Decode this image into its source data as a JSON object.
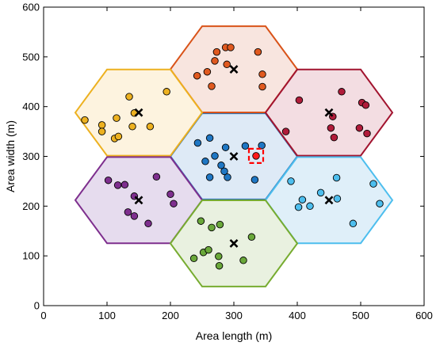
{
  "chart_data": {
    "type": "scatter",
    "title": "",
    "xlabel": "Area length (m)",
    "ylabel": "Area width (m)",
    "xlim": [
      0,
      600
    ],
    "ylim": [
      0,
      600
    ],
    "xticks": [
      "0",
      "100",
      "200",
      "300",
      "400",
      "500",
      "600"
    ],
    "yticks": [
      "0",
      "100",
      "200",
      "300",
      "400",
      "500",
      "600"
    ],
    "hex_radius": 100,
    "grid": false,
    "legend": "none",
    "cells": [
      {
        "center": [
          300,
          300
        ],
        "fill": "#deeaf6",
        "edge": "#2e75b6",
        "point_color": "#1f77c4",
        "points": [
          [
            243,
            327
          ],
          [
            262,
            337
          ],
          [
            270,
            301
          ],
          [
            287,
            318
          ],
          [
            255,
            290
          ],
          [
            280,
            282
          ],
          [
            318,
            321
          ],
          [
            344,
            322
          ],
          [
            262,
            258
          ],
          [
            285,
            270
          ],
          [
            290,
            258
          ],
          [
            333,
            253
          ]
        ]
      },
      {
        "center": [
          300,
          475
        ],
        "fill": "#f8e5df",
        "edge": "#d95319",
        "point_color": "#e0591f",
        "points": [
          [
            273,
            510
          ],
          [
            287,
            519
          ],
          [
            295,
            519
          ],
          [
            338,
            510
          ],
          [
            258,
            470
          ],
          [
            270,
            492
          ],
          [
            289,
            485
          ],
          [
            242,
            462
          ],
          [
            265,
            441
          ],
          [
            345,
            465
          ],
          [
            345,
            440
          ]
        ]
      },
      {
        "center": [
          150,
          388
        ],
        "fill": "#fdf3df",
        "edge": "#edb120",
        "point_color": "#edb120",
        "points": [
          [
            135,
            420
          ],
          [
            194,
            430
          ],
          [
            115,
            377
          ],
          [
            143,
            387
          ],
          [
            65,
            373
          ],
          [
            92,
            363
          ],
          [
            92,
            350
          ],
          [
            140,
            360
          ],
          [
            112,
            336
          ],
          [
            118,
            340
          ],
          [
            168,
            360
          ]
        ]
      },
      {
        "center": [
          450,
          388
        ],
        "fill": "#f3dde2",
        "edge": "#a2142f",
        "point_color": "#b01c3a",
        "points": [
          [
            403,
            413
          ],
          [
            470,
            430
          ],
          [
            502,
            408
          ],
          [
            508,
            403
          ],
          [
            456,
            380
          ],
          [
            498,
            357
          ],
          [
            453,
            357
          ],
          [
            510,
            346
          ],
          [
            458,
            338
          ],
          [
            382,
            350
          ]
        ]
      },
      {
        "center": [
          150,
          212
        ],
        "fill": "#e6dcee",
        "edge": "#7e2f8e",
        "point_color": "#7e2f8e",
        "points": [
          [
            102,
            252
          ],
          [
            117,
            242
          ],
          [
            128,
            243
          ],
          [
            178,
            259
          ],
          [
            200,
            224
          ],
          [
            143,
            220
          ],
          [
            205,
            205
          ],
          [
            133,
            188
          ],
          [
            143,
            180
          ],
          [
            165,
            165
          ]
        ]
      },
      {
        "center": [
          450,
          212
        ],
        "fill": "#dfeff9",
        "edge": "#4dbeee",
        "point_color": "#4dbeee",
        "points": [
          [
            390,
            250
          ],
          [
            462,
            257
          ],
          [
            520,
            245
          ],
          [
            408,
            213
          ],
          [
            437,
            227
          ],
          [
            463,
            215
          ],
          [
            402,
            198
          ],
          [
            420,
            200
          ],
          [
            530,
            205
          ],
          [
            488,
            165
          ]
        ]
      },
      {
        "center": [
          300,
          125
        ],
        "fill": "#e9f1e0",
        "edge": "#77ac30",
        "point_color": "#6aa83a",
        "points": [
          [
            248,
            170
          ],
          [
            265,
            157
          ],
          [
            278,
            163
          ],
          [
            328,
            138
          ],
          [
            237,
            95
          ],
          [
            252,
            107
          ],
          [
            260,
            112
          ],
          [
            276,
            99
          ],
          [
            277,
            80
          ],
          [
            315,
            91
          ]
        ]
      }
    ],
    "centers_marker": "x",
    "highlight": {
      "point": [
        335,
        301
      ],
      "marker": "dashed-square",
      "color": "#ff0000",
      "dot_color": "#ff1a1a"
    }
  }
}
